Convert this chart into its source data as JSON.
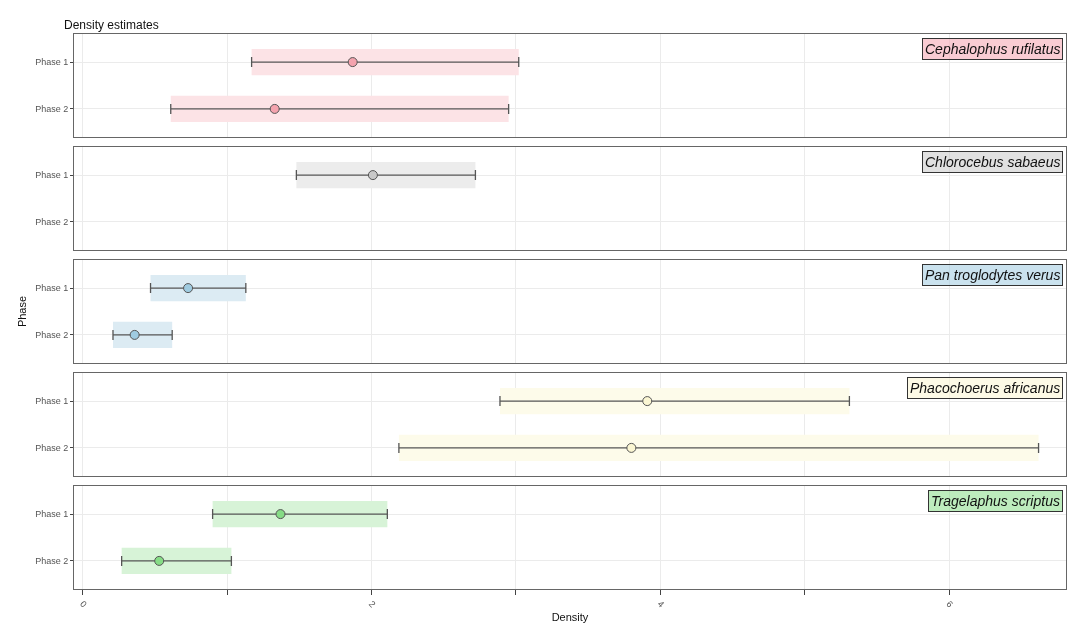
{
  "chart_data": [
    {
      "type": "scatter",
      "orientation": "horizontal",
      "title": "Cephalophus rufilatus",
      "annotations": [
        "Density estimates"
      ],
      "categories": [
        "Phase 1",
        "Phase 2"
      ],
      "series": [
        {
          "type": "bar",
          "color": "#fce3e6",
          "base": [
            1.17,
            0.61
          ],
          "values": [
            1.85,
            2.34
          ]
        },
        {
          "type": "scatter",
          "color": "#f4a3ae",
          "values": [
            1.87,
            1.33
          ],
          "errors": [
            [
              1.17,
              3.02
            ],
            [
              0.61,
              2.95
            ]
          ]
        }
      ],
      "marker": "circle",
      "grid": true,
      "xlim": [
        -0.06,
        6.81
      ],
      "xticks": [
        0,
        {
          "value": 1,
          "label": null
        },
        {
          "value": 2,
          "label": null
        },
        {
          "value": 3,
          "label": null
        },
        {
          "value": 4,
          "label": null
        },
        {
          "value": 5,
          "label": null
        },
        {
          "value": 6,
          "label": null
        }
      ],
      "tick_labels": "y"
    },
    {
      "type": "scatter",
      "orientation": "horizontal",
      "title": "Chlorocebus sabaeus",
      "categories": [
        "Phase 1",
        "Phase 2"
      ],
      "series": [
        {
          "type": "bar",
          "color": "#ececec",
          "base": [
            1.48,
            null
          ],
          "values": [
            1.24,
            null
          ]
        },
        {
          "type": "scatter",
          "color": "#c8c8c8",
          "values": [
            2.01,
            null
          ],
          "errors": [
            [
              1.48,
              2.72
            ],
            null
          ]
        }
      ],
      "marker": "circle",
      "grid": true,
      "xlim": [
        -0.06,
        6.81
      ],
      "xticks": [
        0,
        {
          "value": 1,
          "label": null
        },
        {
          "value": 2,
          "label": null
        },
        {
          "value": 3,
          "label": null
        },
        {
          "value": 4,
          "label": null
        },
        {
          "value": 5,
          "label": null
        },
        {
          "value": 6,
          "label": null
        }
      ],
      "tick_labels": "y"
    },
    {
      "type": "scatter",
      "orientation": "horizontal",
      "title": "Pan troglodytes verus",
      "ylabel": "Phase",
      "categories": [
        "Phase 1",
        "Phase 2"
      ],
      "series": [
        {
          "type": "bar",
          "color": "#dcebf3",
          "base": [
            0.47,
            0.21
          ],
          "values": [
            0.66,
            0.41
          ]
        },
        {
          "type": "scatter",
          "color": "#9fcbe0",
          "values": [
            0.73,
            0.36
          ],
          "errors": [
            [
              0.47,
              1.13
            ],
            [
              0.21,
              0.62
            ]
          ]
        }
      ],
      "marker": "circle",
      "grid": true,
      "xlim": [
        -0.06,
        6.81
      ],
      "xticks": [
        0,
        {
          "value": 1,
          "label": null
        },
        {
          "value": 2,
          "label": null
        },
        {
          "value": 3,
          "label": null
        },
        {
          "value": 4,
          "label": null
        },
        {
          "value": 5,
          "label": null
        },
        {
          "value": 6,
          "label": null
        }
      ],
      "tick_labels": "y"
    },
    {
      "type": "scatter",
      "orientation": "horizontal",
      "title": "Phacochoerus africanus",
      "categories": [
        "Phase 1",
        "Phase 2"
      ],
      "series": [
        {
          "type": "bar",
          "color": "#fdfbea",
          "base": [
            2.89,
            2.19
          ],
          "values": [
            2.42,
            4.43
          ]
        },
        {
          "type": "scatter",
          "color": "#fbf6d2",
          "values": [
            3.91,
            3.8
          ],
          "errors": [
            [
              2.89,
              5.31
            ],
            [
              2.19,
              6.62
            ]
          ]
        }
      ],
      "marker": "circle",
      "grid": true,
      "xlim": [
        -0.06,
        6.81
      ],
      "xticks": [
        0,
        {
          "value": 1,
          "label": null
        },
        {
          "value": 2,
          "label": null
        },
        {
          "value": 3,
          "label": null
        },
        {
          "value": 4,
          "label": null
        },
        {
          "value": 5,
          "label": null
        },
        {
          "value": 6,
          "label": null
        }
      ],
      "tick_labels": "y"
    },
    {
      "type": "scatter",
      "orientation": "horizontal",
      "title": "Tragelaphus scriptus",
      "xlabel": "Density",
      "categories": [
        "Phase 1",
        "Phase 2"
      ],
      "series": [
        {
          "type": "bar",
          "color": "#d7f3d7",
          "base": [
            0.9,
            0.27
          ],
          "values": [
            1.21,
            0.76
          ]
        },
        {
          "type": "scatter",
          "color": "#86dc86",
          "values": [
            1.37,
            0.53
          ],
          "errors": [
            [
              0.9,
              2.11
            ],
            [
              0.27,
              1.03
            ]
          ]
        }
      ],
      "marker": "circle",
      "grid": true,
      "xlim": [
        -0.06,
        6.81
      ],
      "xticks": [
        0,
        {
          "value": 1,
          "label": null
        },
        2,
        {
          "value": 3,
          "label": null
        },
        4,
        {
          "value": 5,
          "label": null
        },
        6
      ]
    }
  ]
}
